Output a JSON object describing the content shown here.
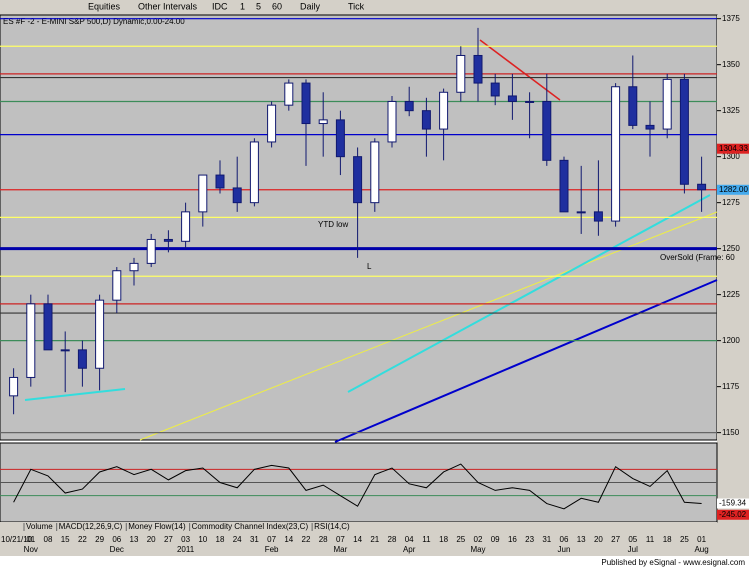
{
  "toolbar": {
    "items": [
      "Equities",
      "Other Intervals",
      "IDC",
      "1",
      "5",
      "60",
      "Daily",
      "Tick"
    ]
  },
  "chart_data": {
    "type": "candlestick",
    "title": "ES #F -2 - E-MINI S&P 500,D) Dynamic,0.00-24.00",
    "categories": [
      "10/21/10",
      "01",
      "08",
      "15",
      "22",
      "29",
      "06",
      "13",
      "20",
      "27",
      "03",
      "10",
      "18",
      "24",
      "31",
      "07",
      "14",
      "22",
      "28",
      "07",
      "14",
      "21",
      "28",
      "04",
      "11",
      "18",
      "25",
      "02",
      "09",
      "16",
      "23",
      "31",
      "06",
      "13",
      "20",
      "27",
      "05",
      "11",
      "18",
      "25",
      "01"
    ],
    "months": [
      null,
      "Nov",
      null,
      null,
      null,
      null,
      "Dec",
      null,
      null,
      null,
      "2011",
      null,
      null,
      null,
      null,
      "Feb",
      null,
      null,
      null,
      "Mar",
      null,
      null,
      null,
      "Apr",
      null,
      null,
      null,
      "May",
      null,
      null,
      null,
      null,
      "Jun",
      null,
      null,
      null,
      "Jul",
      null,
      null,
      null,
      "Aug"
    ],
    "open": [
      1170,
      1180,
      1220,
      1195,
      1195,
      1185,
      1222,
      1238,
      1242,
      1255,
      1254,
      1270,
      1290,
      1283,
      1275,
      1308,
      1328,
      1340,
      1318,
      1320,
      1300,
      1275,
      1308,
      1330,
      1325,
      1315,
      1335,
      1355,
      1340,
      1333,
      1330,
      1330,
      1298,
      1270,
      1270,
      1265,
      1338,
      1317,
      1315,
      1342,
      1285
    ],
    "high": [
      1185,
      1225,
      1225,
      1205,
      1200,
      1225,
      1240,
      1245,
      1258,
      1260,
      1275,
      1290,
      1298,
      1300,
      1310,
      1330,
      1342,
      1342,
      1335,
      1325,
      1305,
      1310,
      1333,
      1338,
      1332,
      1337,
      1360,
      1370,
      1345,
      1345,
      1335,
      1345,
      1300,
      1295,
      1298,
      1340,
      1355,
      1330,
      1345,
      1345,
      1300
    ],
    "low": [
      1160,
      1175,
      1195,
      1172,
      1175,
      1173,
      1215,
      1230,
      1240,
      1248,
      1250,
      1262,
      1280,
      1270,
      1273,
      1305,
      1325,
      1295,
      1300,
      1290,
      1245,
      1270,
      1305,
      1322,
      1300,
      1298,
      1330,
      1330,
      1328,
      1320,
      1310,
      1295,
      1270,
      1258,
      1257,
      1262,
      1315,
      1300,
      1310,
      1280,
      1270
    ],
    "close": [
      1180,
      1220,
      1195,
      1195,
      1185,
      1222,
      1238,
      1242,
      1255,
      1254,
      1270,
      1290,
      1283,
      1275,
      1308,
      1328,
      1340,
      1318,
      1320,
      1300,
      1275,
      1308,
      1330,
      1325,
      1315,
      1335,
      1355,
      1340,
      1333,
      1330,
      1330,
      1298,
      1270,
      1270,
      1265,
      1338,
      1317,
      1315,
      1342,
      1285,
      1282
    ],
    "up_color": "#ffffff",
    "down_color": "#1f2f9f",
    "wick_color": "#10186f",
    "ylim": [
      1146,
      1377
    ],
    "yticks": [
      1150,
      1175,
      1200,
      1225,
      1250,
      1275,
      1300,
      1325,
      1350,
      1375
    ],
    "levels": [
      {
        "value": 1375,
        "color": "#0000cc"
      },
      {
        "value": 1360,
        "color": "#ffff66"
      },
      {
        "value": 1345,
        "color": "#cc2222"
      },
      {
        "value": 1343,
        "color": "#333333"
      },
      {
        "value": 1330,
        "color": "#3c8c5a"
      },
      {
        "value": 1312,
        "color": "#0000cc"
      },
      {
        "value": 1282,
        "color": "#dd2222"
      },
      {
        "value": 1267,
        "color": "#ffff66"
      },
      {
        "value": 1250,
        "color": "#0000aa"
      },
      {
        "value": 1235,
        "color": "#ffff66"
      },
      {
        "value": 1220,
        "color": "#cc2222"
      },
      {
        "value": 1215,
        "color": "#333333"
      },
      {
        "value": 1200,
        "color": "#3c8c5a"
      },
      {
        "value": 1150,
        "color": "#666666"
      }
    ],
    "price_labels": [
      {
        "value": 1304.33,
        "color": "#dd2222"
      },
      {
        "value": {
          "value": 1282,
          "label": "1282.00"
        },
        "color": "#44aaee"
      }
    ],
    "annotations": [
      "YTD low",
      "L",
      "OverSold (Frame: 60"
    ],
    "indicator": {
      "values": [
        -150,
        100,
        50,
        -80,
        -50,
        80,
        120,
        60,
        100,
        20,
        90,
        110,
        0,
        -40,
        100,
        130,
        110,
        -60,
        -20,
        -100,
        -180,
        60,
        110,
        -10,
        -40,
        80,
        140,
        0,
        -60,
        -40,
        -60,
        -160,
        -200,
        -120,
        -150,
        120,
        30,
        -30,
        90,
        -150,
        -159.34
      ],
      "color": "#000000",
      "ylim": [
        -300,
        300
      ],
      "levels": [
        {
          "value": 100,
          "color": "#cc2222"
        },
        {
          "value": 0,
          "color": "#555555"
        },
        {
          "value": -100,
          "color": "#3c8c5a"
        }
      ],
      "labels": [
        {
          "value": -159.34,
          "color": "#ffffff"
        },
        {
          "value": -245.02,
          "color": "#dd2222"
        }
      ]
    },
    "tabs": [
      "Volume",
      "MACD(12,26,9,C)",
      "Money Flow(14)",
      "Commodity Channel Index(23,C)",
      "RSI(14,C)"
    ]
  },
  "footer": "Published by eSignal - www.esignal.com"
}
